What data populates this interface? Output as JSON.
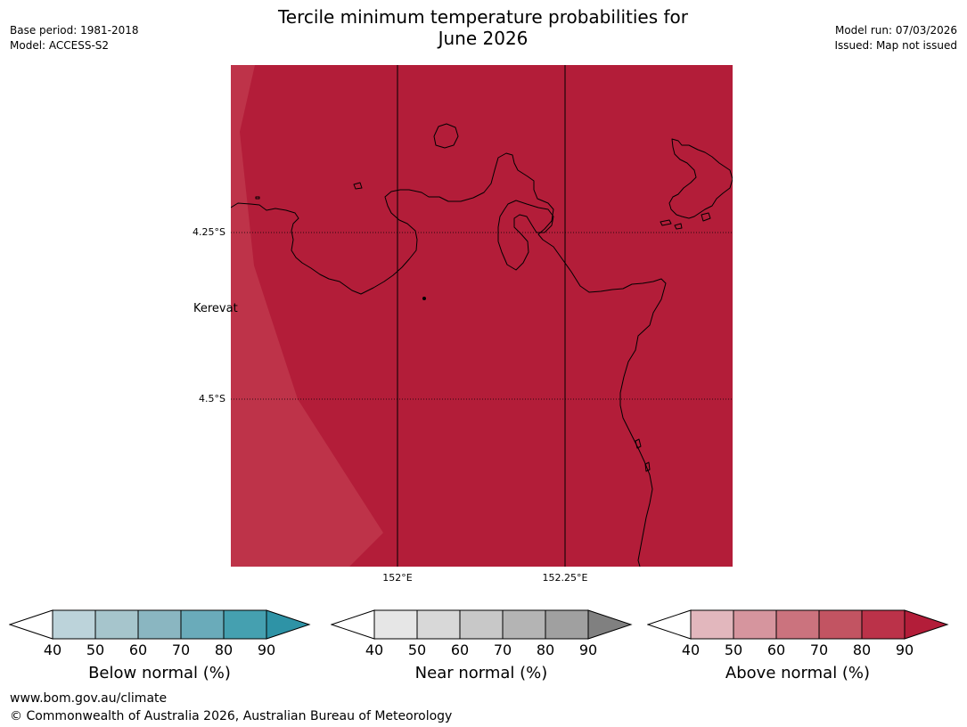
{
  "header": {
    "title_line1": "Tercile minimum temperature probabilities for",
    "title_line2": "June 2026",
    "base_period": "Base period: 1981-2018",
    "model": "Model: ACCESS-S2",
    "model_run": "Model run: 07/03/2026",
    "issued": "Issued: Map not issued"
  },
  "map": {
    "place_label": "Kerevat",
    "lat_labels": [
      "4.25°S",
      "4.5°S"
    ],
    "lon_labels": [
      "152°E",
      "152.25°E"
    ],
    "colors": {
      "field_main": "#b31d39",
      "field_light": "#be3349",
      "field_lighter": "#c13a4f",
      "coastline": "#000000"
    }
  },
  "legends": [
    {
      "title": "Below normal (%)",
      "ticks": [
        "40",
        "50",
        "60",
        "70",
        "80",
        "90"
      ],
      "colors": [
        "#ffffff",
        "#bcd3da",
        "#a6c5cc",
        "#8ab6c1",
        "#6aabba",
        "#45a0b0",
        "#2e93a6"
      ]
    },
    {
      "title": "Near normal (%)",
      "ticks": [
        "40",
        "50",
        "60",
        "70",
        "80",
        "90"
      ],
      "colors": [
        "#ffffff",
        "#e6e6e6",
        "#d8d8d8",
        "#c8c8c8",
        "#b4b4b4",
        "#a0a0a0",
        "#808080"
      ]
    },
    {
      "title": "Above normal (%)",
      "ticks": [
        "40",
        "50",
        "60",
        "70",
        "80",
        "90"
      ],
      "colors": [
        "#ffffff",
        "#e2b7bd",
        "#d6959e",
        "#cb737e",
        "#c25462",
        "#bb3249",
        "#b31d39"
      ]
    }
  ],
  "footer": {
    "url": "www.bom.gov.au/climate",
    "copyright": "© Commonwealth of Australia 2026, Australian Bureau of Meteorology"
  }
}
